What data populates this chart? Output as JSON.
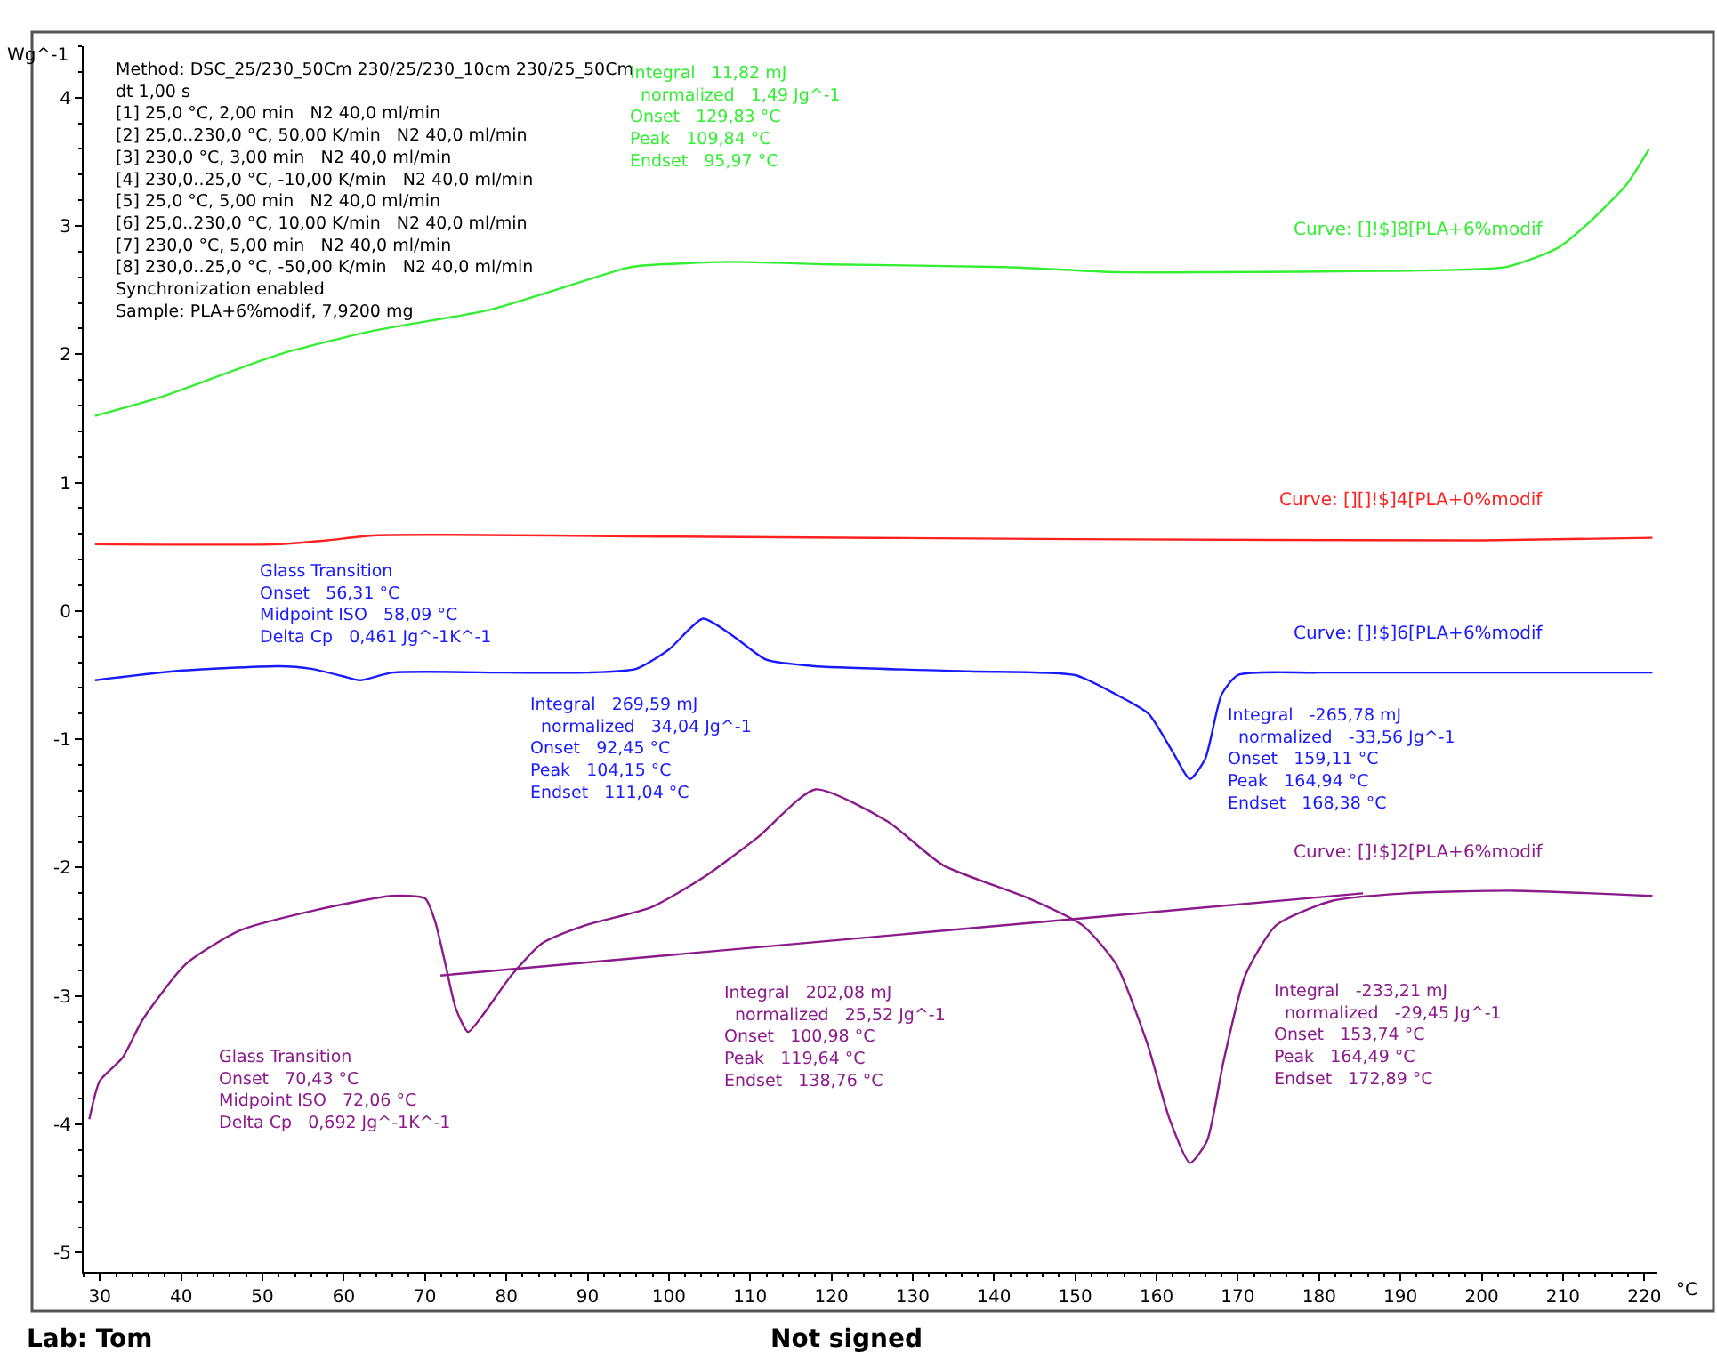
{
  "chart_data": {
    "type": "line",
    "xlabel": "°C",
    "ylabel": "Wg^-1",
    "xlim": [
      28,
      221.5
    ],
    "ylim": [
      -5.15,
      4.4
    ],
    "xticks": [
      30,
      40,
      50,
      60,
      70,
      80,
      90,
      100,
      110,
      120,
      130,
      140,
      150,
      160,
      170,
      180,
      190,
      200,
      210,
      220
    ],
    "yticks": [
      -5,
      -4,
      -3,
      -2,
      -1,
      0,
      1,
      2,
      3,
      4
    ],
    "marker": "none",
    "line_style": "solid",
    "series": [
      {
        "name": "Curve: []!$]8[PLA+6%modif",
        "color": "#33ee33",
        "x": [
          29.4,
          37.2,
          52.1,
          63.4,
          78.2,
          94.6,
          96.5,
          107.4,
          120,
          141.4,
          155,
          166.9,
          188.1,
          203,
          209.4,
          213.6,
          217.9,
          220.6
        ],
        "values": [
          1.52,
          1.66,
          2.0,
          2.18,
          2.35,
          2.67,
          2.69,
          2.72,
          2.7,
          2.68,
          2.64,
          2.64,
          2.65,
          2.68,
          2.83,
          3.05,
          3.33,
          3.6
        ]
      },
      {
        "name": "Curve: [][]!$]4[PLA+0%modif",
        "color": "#ff2020",
        "x": [
          29.4,
          52,
          58,
          64,
          100,
          150,
          200,
          221
        ],
        "values": [
          0.52,
          0.52,
          0.55,
          0.59,
          0.58,
          0.56,
          0.55,
          0.57
        ]
      },
      {
        "name": "Curve: []!$]6[PLA+6%modif",
        "color": "#1a1aff",
        "x": [
          29.4,
          39,
          52,
          56,
          60,
          62,
          66,
          80,
          90,
          96,
          100,
          104.2,
          108,
          112,
          118,
          137,
          150,
          155,
          159,
          162,
          164.1,
          166,
          168,
          170,
          180,
          221
        ],
        "values": [
          -0.54,
          -0.47,
          -0.43,
          -0.45,
          -0.51,
          -0.54,
          -0.48,
          -0.48,
          -0.48,
          -0.45,
          -0.3,
          -0.06,
          -0.2,
          -0.38,
          -0.43,
          -0.47,
          -0.5,
          -0.65,
          -0.8,
          -1.1,
          -1.31,
          -1.15,
          -0.65,
          -0.5,
          -0.48,
          -0.48
        ]
      },
      {
        "name": "Curve: []!$]2[PLA+6%modif",
        "color": "#8b1a8b",
        "x": [
          28.7,
          30,
          32.8,
          35.3,
          40.6,
          47.2,
          56.6,
          65.9,
          70,
          71.2,
          72.5,
          73.8,
          75.3,
          77.2,
          80.6,
          84.4,
          89.7,
          97.8,
          104.4,
          111,
          118,
          126.9,
          133.7,
          144.3,
          150.9,
          155,
          158.8,
          161.6,
          164.1,
          166.2,
          168.2,
          170.9,
          174.7,
          181.5,
          190.7,
          204,
          221
        ],
        "values": [
          -3.96,
          -3.66,
          -3.48,
          -3.18,
          -2.75,
          -2.49,
          -2.33,
          -2.22,
          -2.24,
          -2.41,
          -2.75,
          -3.1,
          -3.28,
          -3.14,
          -2.84,
          -2.59,
          -2.45,
          -2.31,
          -2.07,
          -1.76,
          -1.39,
          -1.64,
          -1.98,
          -2.24,
          -2.45,
          -2.75,
          -3.36,
          -3.96,
          -4.3,
          -4.13,
          -3.52,
          -2.84,
          -2.45,
          -2.26,
          -2.2,
          -2.18,
          -2.22
        ]
      },
      {
        "color": "#8b1a8b",
        "x": [
          71.9,
          185.4
        ],
        "values": [
          -2.84,
          -2.2
        ]
      }
    ],
    "annotations": [
      "Method: DSC_25/230_50Cm 230/25/230_10cm 230/25_50Cm\ndt 1,00 s\n[1] 25,0 °C, 2,00 min   N2 40,0 ml/min\n[2] 25,0..230,0 °C, 50,00 K/min   N2 40,0 ml/min\n[3] 230,0 °C, 3,00 min   N2 40,0 ml/min\n[4] 230,0..25,0 °C, -10,00 K/min   N2 40,0 ml/min\n[5] 25,0 °C, 5,00 min   N2 40,0 ml/min\n[6] 25,0..230,0 °C, 10,00 K/min   N2 40,0 ml/min\n[7] 230,0 °C, 5,00 min   N2 40,0 ml/min\n[8] 230,0..25,0 °C, -50,00 K/min   N2 40,0 ml/min\nSynchronization enabled\nSample: PLA+6%modif, 7,9200 mg",
      "Integral   11,82 mJ\n  normalized   1,49 Jg^-1\nOnset   129,83 °C\nPeak   109,84 °C\nEndset   95,97 °C",
      "Glass Transition\nOnset   56,31 °C\nMidpoint ISO   58,09 °C\nDelta Cp   0,461 Jg^-1K^-1",
      "Integral   269,59 mJ\n  normalized   34,04 Jg^-1\nOnset   92,45 °C\nPeak   104,15 °C\nEndset   111,04 °C",
      "Integral   -265,78 mJ\n  normalized   -33,56 Jg^-1\nOnset   159,11 °C\nPeak   164,94 °C\nEndset   168,38 °C",
      "Glass Transition\nOnset   70,43 °C\nMidpoint ISO   72,06 °C\nDelta Cp   0,692 Jg^-1K^-1",
      "Integral   202,08 mJ\n  normalized   25,52 Jg^-1\nOnset   100,98 °C\nPeak   119,64 °C\nEndset   138,76 °C",
      "Integral   -233,21 mJ\n  normalized   -29,45 Jg^-1\nOnset   153,74 °C\nPeak   164,49 °C\nEndset   172,89 °C",
      "Lab: Tom",
      "Not signed"
    ]
  }
}
